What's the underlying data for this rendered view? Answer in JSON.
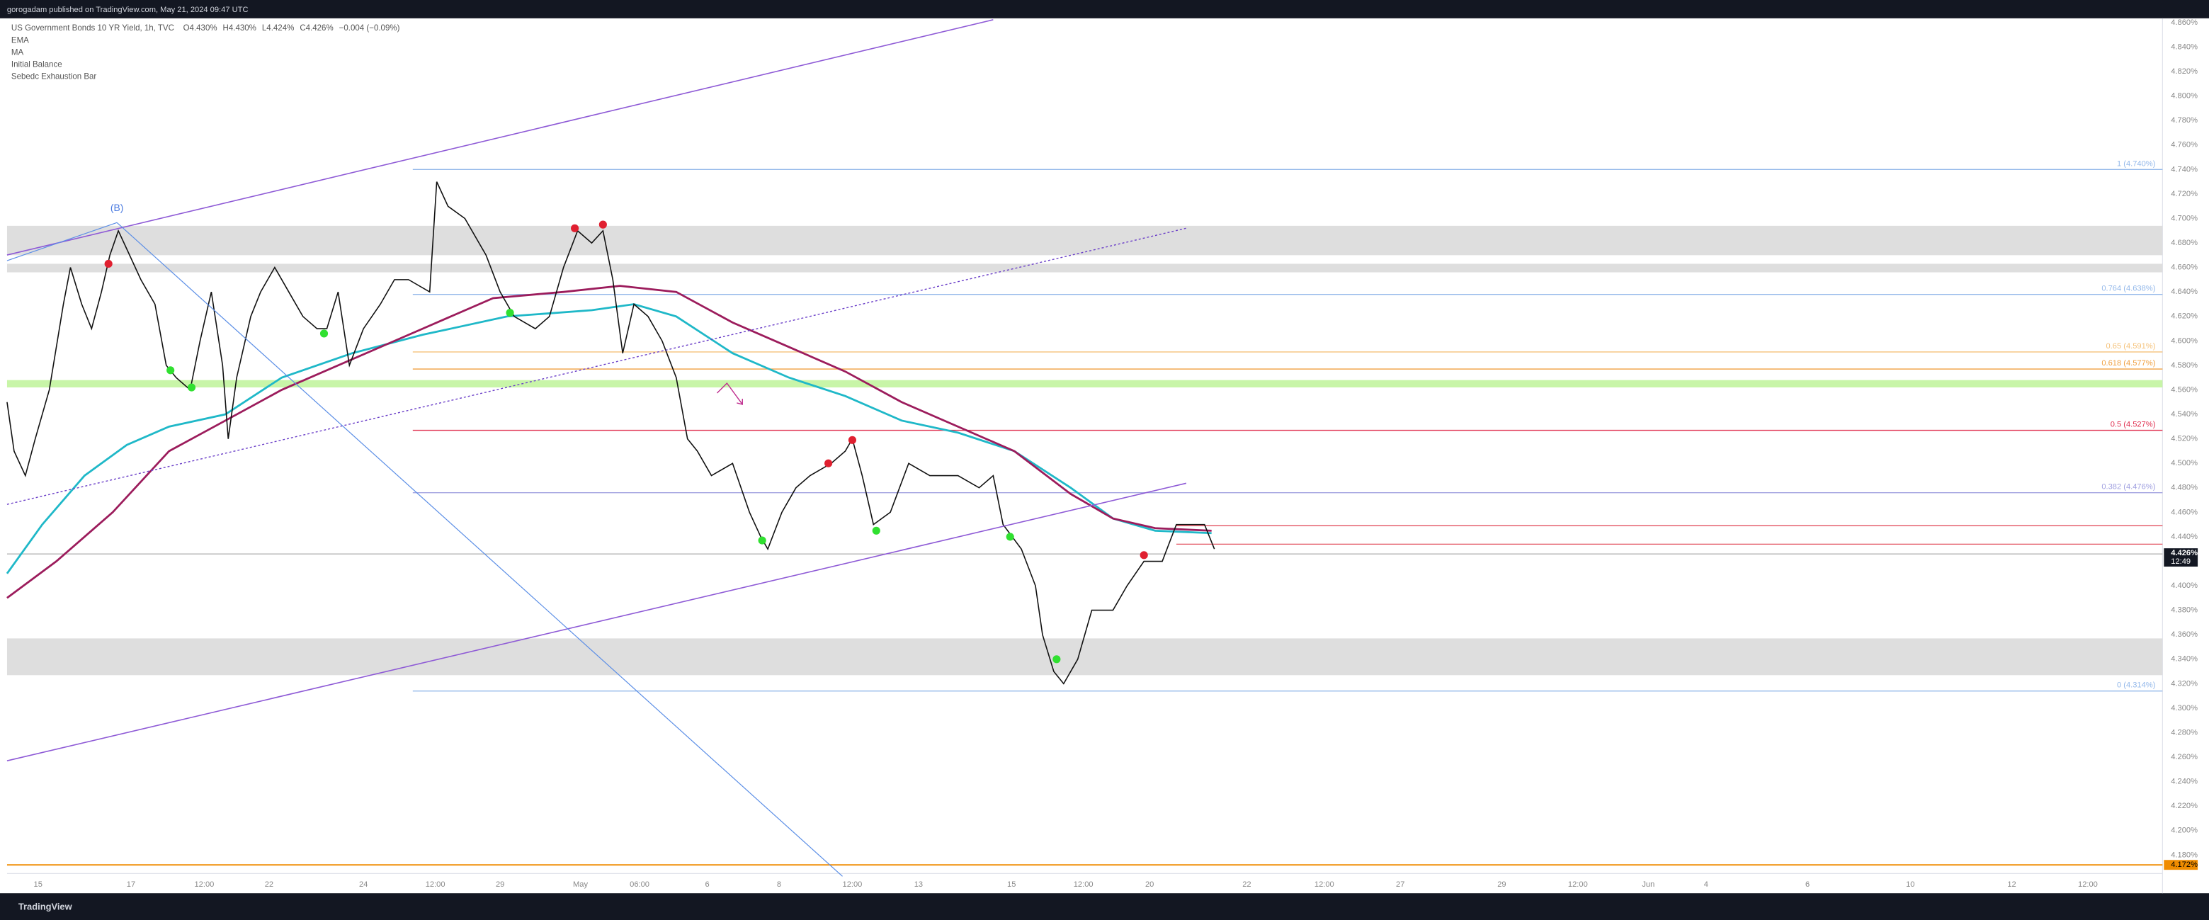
{
  "header": {
    "publisher": "gorogadam published on TradingView.com, May 21, 2024 09:47 UTC",
    "brand": "TradingView"
  },
  "chart_data": {
    "type": "line",
    "title": "US Government Bonds 10 YR Yield, 1h, TVC",
    "ohlc": [
      "O4.430%",
      "H4.430%",
      "L4.424%",
      "C4.426%",
      "−0.004 (−0.09%)"
    ],
    "indicators": [
      "Initial Balance",
      "Sebedc Exhaustion Bar"
    ],
    "annotation": "(B)",
    "xlim": [
      0.5,
      153.5
    ],
    "ylim": [
      4.15,
      4.862
    ],
    "xticks": [
      {
        "value": 2.7,
        "label": "15"
      },
      {
        "value": 9.3,
        "label": "17"
      },
      {
        "value": 14.5,
        "label": "12:00"
      },
      {
        "value": 19.1,
        "label": "22"
      },
      {
        "value": 25.8,
        "label": "24"
      },
      {
        "value": 30.9,
        "label": "12:00"
      },
      {
        "value": 35.5,
        "label": "29"
      },
      {
        "value": 41.2,
        "label": "May"
      },
      {
        "value": 45.4,
        "label": "06:00"
      },
      {
        "value": 50.2,
        "label": "6"
      },
      {
        "value": 55.3,
        "label": "8"
      },
      {
        "value": 60.5,
        "label": "12:00"
      },
      {
        "value": 65.2,
        "label": "13"
      },
      {
        "value": 71.8,
        "label": "15"
      },
      {
        "value": 76.9,
        "label": "12:00"
      },
      {
        "value": 81.6,
        "label": "20"
      },
      {
        "value": 88.5,
        "label": "22"
      },
      {
        "value": 94,
        "label": "12:00"
      },
      {
        "value": 99.4,
        "label": "27"
      },
      {
        "value": 106.6,
        "label": "29"
      },
      {
        "value": 112,
        "label": "12:00"
      },
      {
        "value": 117,
        "label": "Jun"
      },
      {
        "value": 121.1,
        "label": "4"
      },
      {
        "value": 128.3,
        "label": "6"
      },
      {
        "value": 135.6,
        "label": "10"
      },
      {
        "value": 142.8,
        "label": "12"
      },
      {
        "value": 148.2,
        "label": "12:00"
      }
    ],
    "yticks": [
      {
        "value": 4.18,
        "label": "4.180%"
      },
      {
        "value": 4.2,
        "label": "4.200%"
      },
      {
        "value": 4.22,
        "label": "4.220%"
      },
      {
        "value": 4.24,
        "label": "4.240%"
      },
      {
        "value": 4.26,
        "label": "4.260%"
      },
      {
        "value": 4.28,
        "label": "4.280%"
      },
      {
        "value": 4.3,
        "label": "4.300%"
      },
      {
        "value": 4.32,
        "label": "4.320%"
      },
      {
        "value": 4.34,
        "label": "4.340%"
      },
      {
        "value": 4.36,
        "label": "4.360%"
      },
      {
        "value": 4.38,
        "label": "4.380%"
      },
      {
        "value": 4.4,
        "label": "4.400%"
      },
      {
        "value": 4.42,
        "label": "4.420%"
      },
      {
        "value": 4.44,
        "label": "4.440%"
      },
      {
        "value": 4.46,
        "label": "4.460%"
      },
      {
        "value": 4.48,
        "label": "4.480%"
      },
      {
        "value": 4.5,
        "label": "4.500%"
      },
      {
        "value": 4.52,
        "label": "4.520%"
      },
      {
        "value": 4.54,
        "label": "4.540%"
      },
      {
        "value": 4.56,
        "label": "4.560%"
      },
      {
        "value": 4.58,
        "label": "4.580%"
      },
      {
        "value": 4.6,
        "label": "4.600%"
      },
      {
        "value": 4.62,
        "label": "4.620%"
      },
      {
        "value": 4.64,
        "label": "4.640%"
      },
      {
        "value": 4.66,
        "label": "4.660%"
      },
      {
        "value": 4.68,
        "label": "4.680%"
      },
      {
        "value": 4.7,
        "label": "4.700%"
      },
      {
        "value": 4.72,
        "label": "4.720%"
      },
      {
        "value": 4.74,
        "label": "4.740%"
      },
      {
        "value": 4.76,
        "label": "4.760%"
      },
      {
        "value": 4.78,
        "label": "4.780%"
      },
      {
        "value": 4.8,
        "label": "4.800%"
      },
      {
        "value": 4.82,
        "label": "4.820%"
      },
      {
        "value": 4.84,
        "label": "4.840%"
      },
      {
        "value": 4.86,
        "label": "4.860%"
      }
    ],
    "price": {
      "color": "#111111",
      "x": [
        0.5,
        1,
        1.8,
        2.5,
        3.5,
        4.5,
        5,
        5.8,
        6.5,
        7.2,
        7.8,
        8.4,
        9.2,
        10,
        11,
        11.8,
        12.5,
        13.5,
        14.2,
        15,
        15.8,
        16.2,
        16.8,
        17.8,
        18.5,
        19.5,
        20.5,
        21.5,
        22.5,
        23.2,
        24,
        24.8,
        25.8,
        27,
        28,
        29,
        30.5,
        31,
        31.8,
        33,
        34.5,
        35.5,
        36.5,
        38,
        39,
        40,
        41,
        42,
        42.8,
        43.5,
        44.2,
        45,
        46,
        47,
        48,
        48.8,
        49.5,
        50.5,
        52,
        53.2,
        54,
        54.5,
        55.5,
        56.5,
        57.5,
        59,
        60,
        60.5,
        61.2,
        62,
        63.2,
        64.5,
        66,
        68,
        69.5,
        70.5,
        71.2,
        72.5,
        73.5,
        74,
        74.8,
        75.5,
        76.5,
        77.5,
        79,
        80,
        81.2,
        82.5,
        83.5,
        84.5,
        85.5,
        86.2
      ],
      "values": [
        4.55,
        4.51,
        4.49,
        4.52,
        4.56,
        4.63,
        4.66,
        4.63,
        4.61,
        4.64,
        4.67,
        4.69,
        4.67,
        4.65,
        4.63,
        4.58,
        4.57,
        4.56,
        4.6,
        4.64,
        4.58,
        4.52,
        4.57,
        4.62,
        4.64,
        4.66,
        4.64,
        4.62,
        4.61,
        4.61,
        4.64,
        4.58,
        4.61,
        4.63,
        4.65,
        4.65,
        4.64,
        4.73,
        4.71,
        4.7,
        4.67,
        4.64,
        4.62,
        4.61,
        4.62,
        4.66,
        4.69,
        4.68,
        4.69,
        4.65,
        4.59,
        4.63,
        4.62,
        4.6,
        4.57,
        4.52,
        4.51,
        4.49,
        4.5,
        4.46,
        4.44,
        4.43,
        4.46,
        4.48,
        4.49,
        4.5,
        4.51,
        4.52,
        4.49,
        4.45,
        4.46,
        4.5,
        4.49,
        4.49,
        4.48,
        4.49,
        4.45,
        4.43,
        4.4,
        4.36,
        4.33,
        4.32,
        4.34,
        4.38,
        4.38,
        4.4,
        4.42,
        4.42,
        4.45,
        4.45,
        4.45,
        4.43
      ]
    },
    "series": [
      {
        "name": "EMA",
        "color": "#1fb8c8",
        "x": [
          0.5,
          3,
          6,
          9,
          12,
          16,
          20,
          25,
          30,
          36,
          42,
          45,
          48,
          52,
          56,
          60,
          64,
          68,
          72,
          76,
          79,
          82,
          86
        ],
        "values": [
          4.41,
          4.45,
          4.49,
          4.515,
          4.53,
          4.54,
          4.57,
          4.59,
          4.605,
          4.62,
          4.625,
          4.63,
          4.62,
          4.59,
          4.57,
          4.555,
          4.535,
          4.525,
          4.51,
          4.48,
          4.455,
          4.445,
          4.443
        ]
      },
      {
        "name": "MA",
        "color": "#9c1c5c",
        "x": [
          0.5,
          4,
          8,
          12,
          16,
          20,
          25,
          30,
          35,
          40,
          44,
          48,
          52,
          56,
          60,
          64,
          68,
          72,
          76,
          79,
          82,
          86
        ],
        "values": [
          4.39,
          4.42,
          4.46,
          4.51,
          4.535,
          4.56,
          4.585,
          4.61,
          4.635,
          4.64,
          4.645,
          4.64,
          4.615,
          4.595,
          4.575,
          4.55,
          4.53,
          4.51,
          4.475,
          4.455,
          4.447,
          4.445
        ]
      }
    ],
    "signals": [
      {
        "color": "#e02030",
        "x": [
          7.7,
          40.8,
          42.8,
          58.8,
          60.5,
          81.2
        ],
        "values": [
          4.663,
          4.692,
          4.695,
          4.5,
          4.519,
          4.425
        ]
      },
      {
        "color": "#30e030",
        "x": [
          12.1,
          13.6,
          23,
          36.2,
          54.1,
          62.2,
          71.7,
          75
        ],
        "values": [
          4.576,
          4.562,
          4.606,
          4.623,
          4.437,
          4.445,
          4.44,
          4.34
        ]
      }
    ],
    "fib_levels": [
      {
        "label": "1 (4.740%)",
        "value": 4.74,
        "color": "#93b8ea"
      },
      {
        "label": "0.764 (4.638%)",
        "value": 4.638,
        "color": "#93b8ea"
      },
      {
        "label": "0.65 (4.591%)",
        "value": 4.591,
        "color": "#f5c27a"
      },
      {
        "label": "0.618 (4.577%)",
        "value": 4.577,
        "color": "#f0a040"
      },
      {
        "label": "0.5 (4.527%)",
        "value": 4.527,
        "color": "#e03050"
      },
      {
        "label": "0.382 (4.476%)",
        "value": 4.476,
        "color": "#a0a0e0"
      },
      {
        "label": "0 (4.314%)",
        "value": 4.314,
        "color": "#93b8ea"
      }
    ],
    "zones": [
      {
        "range": [
          4.67,
          4.694
        ],
        "color": "#dedede"
      },
      {
        "range": [
          4.656,
          4.663
        ],
        "color": "#dedede"
      },
      {
        "range": [
          4.562,
          4.568
        ],
        "color": "#c8f5a8"
      },
      {
        "range": [
          4.327,
          4.357
        ],
        "color": "#dedede"
      }
    ],
    "alert_lines": [
      {
        "value": 4.449,
        "color": "#e04050"
      },
      {
        "value": 4.434,
        "color": "#e04050"
      }
    ],
    "last_price": {
      "value": 4.426,
      "label": "4.426%",
      "countdown": "12:49"
    },
    "support": {
      "value": 4.172,
      "label": "4.172%",
      "color": "#f08c00"
    }
  }
}
